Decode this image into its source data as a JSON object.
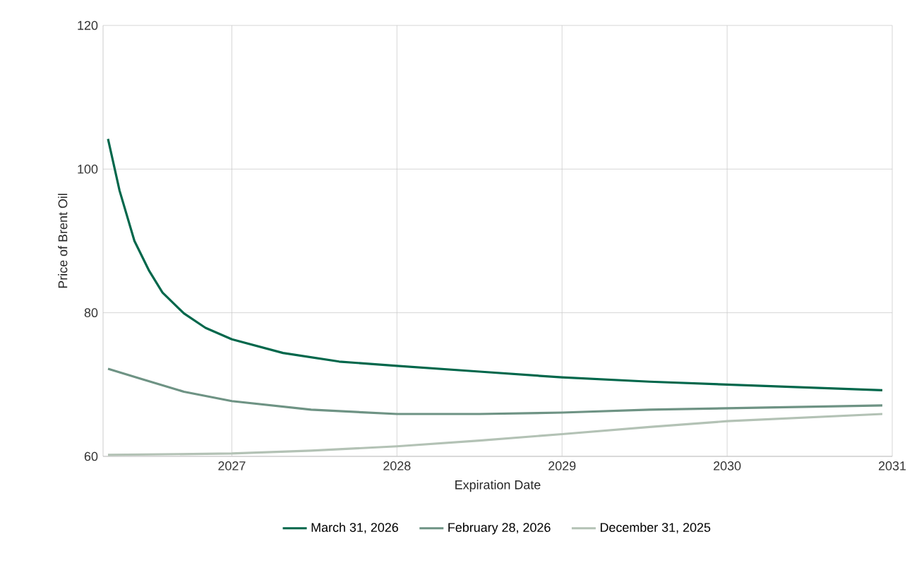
{
  "chart_data": {
    "type": "line",
    "xlabel": "Expiration Date",
    "ylabel": "Price of Brent Oil",
    "xlim": [
      2026.22,
      2031
    ],
    "ylim": [
      60,
      120
    ],
    "xticks": [
      2027,
      2028,
      2029,
      2030,
      2031
    ],
    "yticks": [
      60,
      80,
      100,
      120
    ],
    "grid": true,
    "legend": "bottom",
    "marker": "none",
    "series": [
      {
        "name": "March 31, 2026",
        "color": "#00674b",
        "x": [
          2026.25,
          2026.32,
          2026.41,
          2026.5,
          2026.58,
          2026.71,
          2026.84,
          2027,
          2027.31,
          2027.65,
          2028,
          2028.5,
          2029,
          2029.53,
          2030,
          2030.47,
          2030.94
        ],
        "values": [
          104.2,
          97,
          90,
          85.8,
          82.8,
          79.9,
          77.9,
          76.3,
          74.4,
          73.2,
          72.6,
          71.8,
          71.0,
          70.4,
          70.0,
          69.6,
          69.2
        ]
      },
      {
        "name": "February 28, 2026",
        "color": "#6e9384",
        "x": [
          2026.25,
          2026.45,
          2026.71,
          2027,
          2027.48,
          2028,
          2028.5,
          2029,
          2029.53,
          2030,
          2030.94
        ],
        "values": [
          72.2,
          70.8,
          69,
          67.7,
          66.5,
          65.9,
          65.9,
          66.1,
          66.5,
          66.7,
          67.1
        ]
      },
      {
        "name": "December 31, 2025",
        "color": "#b3c2b5",
        "x": [
          2026.25,
          2027,
          2027.48,
          2028,
          2028.5,
          2029,
          2029.53,
          2030,
          2030.94
        ],
        "values": [
          60.2,
          60.4,
          60.8,
          61.4,
          62.2,
          63.1,
          64.1,
          64.9,
          65.9
        ]
      }
    ]
  }
}
